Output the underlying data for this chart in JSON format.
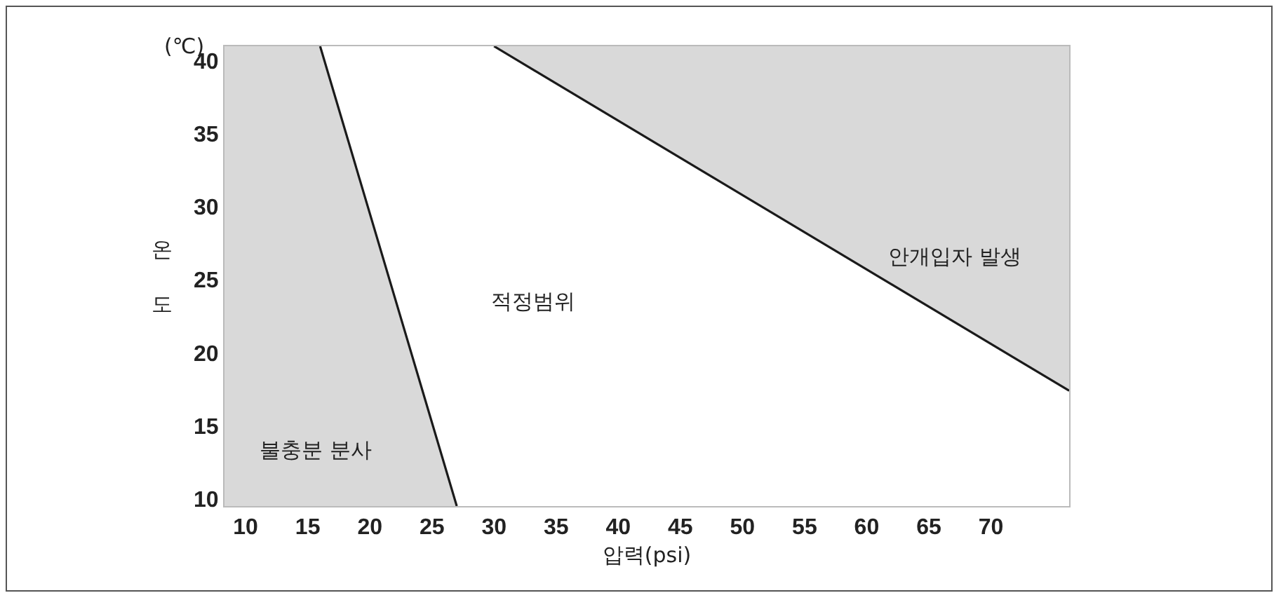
{
  "chart_data": {
    "type": "line",
    "xlabel": "압력(psi)",
    "ylabel": "온도",
    "xlim": [
      8.3,
      76.3
    ],
    "ylim": [
      9.5,
      41
    ],
    "xticks": [
      10,
      15,
      20,
      25,
      30,
      35,
      40,
      45,
      50,
      55,
      60,
      65,
      70
    ],
    "yticks": [
      10,
      15,
      20,
      25,
      30,
      35,
      40
    ],
    "grid": false,
    "marker": "none",
    "line_style": "solid",
    "series": [
      {
        "color": "#1a1a1a",
        "x": [
          16,
          27
        ],
        "values": [
          41,
          9.5
        ]
      },
      {
        "color": "#1a1a1a",
        "x": [
          30,
          76.3
        ],
        "values": [
          41,
          17.4
        ]
      }
    ],
    "annotations": [
      "(℃)",
      "적정범위",
      "불충분 분사",
      "안개입자 발생"
    ]
  }
}
